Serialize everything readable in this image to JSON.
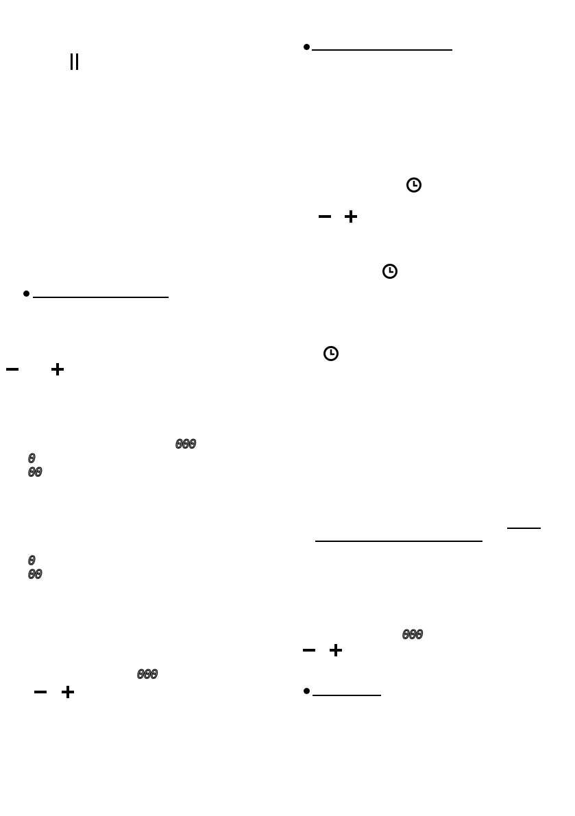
{
  "icons": [
    "pause-icon",
    "minus-icon",
    "plus-icon",
    "clock-icon"
  ],
  "left": {
    "display_a": "000",
    "display_b": "0",
    "display_c": "00",
    "display_d": "0",
    "display_e": "00",
    "display_f": "000"
  },
  "right": {
    "display_a": "000"
  }
}
